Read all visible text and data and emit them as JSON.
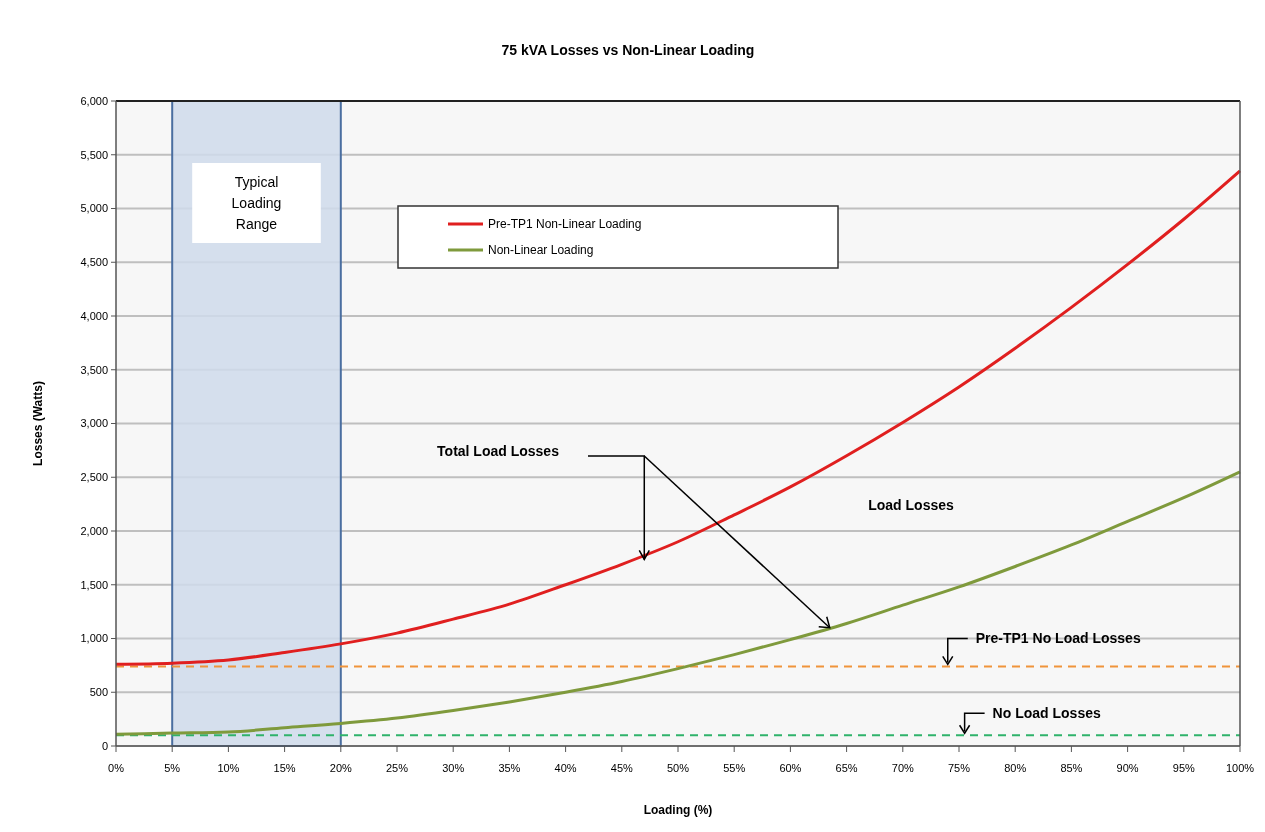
{
  "chart_data": {
    "type": "line",
    "title": "75 kVA Losses vs Non-Linear Loading",
    "xlabel": "Loading (%)",
    "ylabel": "Losses (Watts)",
    "x": [
      0,
      5,
      10,
      15,
      20,
      25,
      30,
      35,
      40,
      45,
      50,
      55,
      60,
      65,
      70,
      75,
      80,
      85,
      90,
      95,
      100
    ],
    "series": [
      {
        "name": "Pre-TP1 Non-Linear Loading",
        "color": "#e01f1f",
        "values": [
          760,
          770,
          800,
          870,
          950,
          1050,
          1180,
          1320,
          1500,
          1690,
          1900,
          2150,
          2410,
          2700,
          3010,
          3340,
          3700,
          4080,
          4480,
          4900,
          5350
        ]
      },
      {
        "name": "Non-Linear Loading",
        "color": "#7f9a3c",
        "values": [
          110,
          120,
          130,
          170,
          210,
          260,
          330,
          410,
          500,
          600,
          720,
          850,
          990,
          1140,
          1310,
          1480,
          1670,
          1870,
          2090,
          2310,
          2550
        ]
      }
    ],
    "xlim": [
      0,
      100
    ],
    "xticks": [
      {
        "value": 0,
        "label": "0%"
      },
      {
        "value": 5,
        "label": "5%"
      },
      {
        "value": 10,
        "label": "10%"
      },
      {
        "value": 15,
        "label": "15%"
      },
      {
        "value": 20,
        "label": "20%"
      },
      {
        "value": 25,
        "label": "25%"
      },
      {
        "value": 30,
        "label": "30%"
      },
      {
        "value": 35,
        "label": "35%"
      },
      {
        "value": 40,
        "label": "40%"
      },
      {
        "value": 45,
        "label": "45%"
      },
      {
        "value": 50,
        "label": "50%"
      },
      {
        "value": 55,
        "label": "55%"
      },
      {
        "value": 60,
        "label": "60%"
      },
      {
        "value": 65,
        "label": "65%"
      },
      {
        "value": 70,
        "label": "70%"
      },
      {
        "value": 75,
        "label": "75%"
      },
      {
        "value": 80,
        "label": "80%"
      },
      {
        "value": 85,
        "label": "85%"
      },
      {
        "value": 90,
        "label": "90%"
      },
      {
        "value": 95,
        "label": "95%"
      },
      {
        "value": 100,
        "label": "100%"
      }
    ],
    "ylim": [
      0,
      6000
    ],
    "yticks": [
      0,
      500,
      {
        "value": 1000,
        "label": "1,000"
      },
      {
        "value": 1500,
        "label": "1,500"
      },
      {
        "value": 2000,
        "label": "2,000"
      },
      {
        "value": 2500,
        "label": "2,500"
      },
      {
        "value": 3000,
        "label": "3,000"
      },
      {
        "value": 3500,
        "label": "3,500"
      },
      {
        "value": 4000,
        "label": "4,000"
      },
      {
        "value": 4500,
        "label": "4,500"
      },
      {
        "value": 5000,
        "label": "5,000"
      },
      {
        "value": 5500,
        "label": "5,500"
      },
      {
        "value": 6000,
        "label": "6,000"
      }
    ],
    "grid": "y",
    "legend": "top",
    "marker": "none",
    "line_style": "solid",
    "ref_lines": [
      {
        "axis": "y",
        "value": 740,
        "label": "Pre-TP1 No Load Losses",
        "color": "#f0943a",
        "line_style": "dashed"
      },
      {
        "axis": "y",
        "value": 100,
        "label": "No Load Losses",
        "color": "#2fb36b",
        "line_style": "dashed"
      }
    ],
    "bands": [
      {
        "axis": "x",
        "from": 5,
        "to": 20,
        "label": "Typical Loading Range",
        "color": "#cfdbeb"
      }
    ],
    "annotations": [
      "Total Load Losses",
      "Load Losses"
    ]
  }
}
